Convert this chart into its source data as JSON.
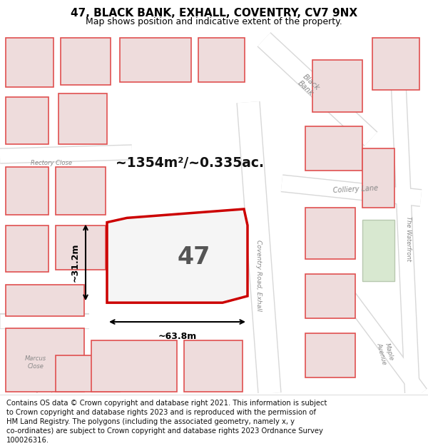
{
  "title": "47, BLACK BANK, EXHALL, COVENTRY, CV7 9NX",
  "subtitle": "Map shows position and indicative extent of the property.",
  "footer_lines": [
    "Contains OS data © Crown copyright and database right 2021. This information is subject",
    "to Crown copyright and database rights 2023 and is reproduced with the permission of",
    "HM Land Registry. The polygons (including the associated geometry, namely x, y",
    "co-ordinates) are subject to Crown copyright and database rights 2023 Ordnance Survey",
    "100026316."
  ],
  "map_bg": "#f0f0f0",
  "road_color": "#ffffff",
  "road_edge_color": "#d8d8d8",
  "building_outline": "#e05050",
  "building_fill": "#eedcdc",
  "highlight_outline": "#cc0000",
  "highlight_fill": "#f5f5f5",
  "area_text": "~1354m²/~0.335ac.",
  "property_label": "47",
  "dim1_label": "~31.2m",
  "dim2_label": "~63.8m",
  "title_fontsize": 11,
  "subtitle_fontsize": 9,
  "footer_fontsize": 7.2,
  "park_fill": "#d8e8d0",
  "park_edge": "#b8c8b0"
}
